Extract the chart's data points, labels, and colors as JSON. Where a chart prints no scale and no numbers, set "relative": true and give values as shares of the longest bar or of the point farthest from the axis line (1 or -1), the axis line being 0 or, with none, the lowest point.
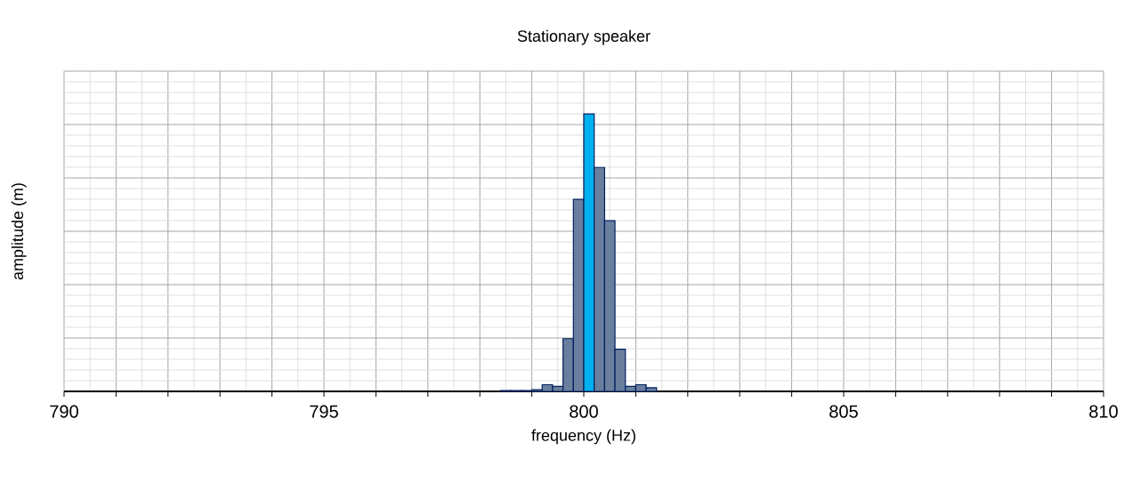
{
  "chart_data": {
    "type": "bar",
    "title": "Stationary speaker",
    "xlabel": "frequency (Hz)",
    "ylabel": "amplitude (m)",
    "relative": true,
    "x": [
      798.5,
      798.7,
      798.9,
      799.1,
      799.3,
      799.5,
      799.7,
      799.9,
      800.1,
      800.3,
      800.5,
      800.7,
      800.9,
      801.1,
      801.3
    ],
    "values": [
      0.003,
      0.003,
      0.003,
      0.006,
      0.024,
      0.018,
      0.19,
      0.692,
      1,
      0.807,
      0.615,
      0.152,
      0.018,
      0.024,
      0.013
    ],
    "colors": [
      "#6a7f9e",
      "#6a7f9e",
      "#6a7f9e",
      "#6a7f9e",
      "#6a7f9e",
      "#6a7f9e",
      "#6a7f9e",
      "#6a7f9e",
      "#00b0f0",
      "#6a7f9e",
      "#6a7f9e",
      "#6a7f9e",
      "#6a7f9e",
      "#6a7f9e",
      "#6a7f9e"
    ],
    "xlim": [
      790,
      810
    ],
    "xticks": [
      790,
      {
        "value": 791,
        "label": null
      },
      {
        "value": 792,
        "label": null
      },
      {
        "value": 793,
        "label": null
      },
      {
        "value": 794,
        "label": null
      },
      795,
      {
        "value": 796,
        "label": null
      },
      {
        "value": 797,
        "label": null
      },
      {
        "value": 798,
        "label": null
      },
      {
        "value": 799,
        "label": null
      },
      800,
      {
        "value": 801,
        "label": null
      },
      {
        "value": 802,
        "label": null
      },
      {
        "value": 803,
        "label": null
      },
      {
        "value": 804,
        "label": null
      },
      805,
      {
        "value": 806,
        "label": null
      },
      {
        "value": 807,
        "label": null
      },
      {
        "value": 808,
        "label": null
      },
      {
        "value": 809,
        "label": null
      },
      810
    ],
    "grid": true
  }
}
